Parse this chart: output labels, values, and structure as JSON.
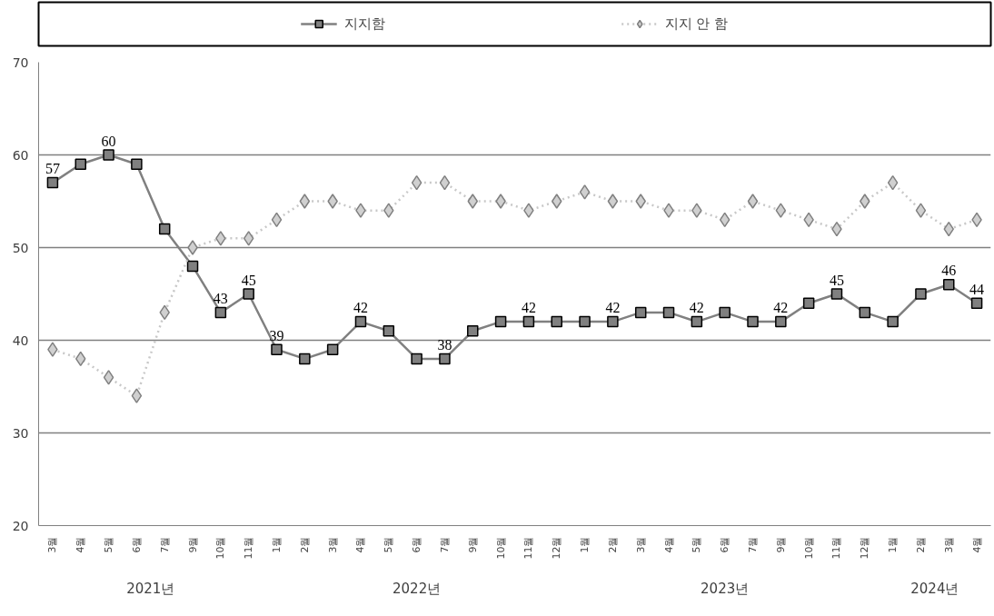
{
  "chart_data": {
    "type": "line",
    "categories": [
      "3월",
      "4월",
      "5월",
      "6월",
      "7월",
      "9월",
      "10월",
      "11월",
      "1월",
      "2월",
      "3월",
      "4월",
      "5월",
      "6월",
      "7월",
      "9월",
      "10월",
      "11월",
      "12월",
      "1월",
      "2월",
      "3월",
      "4월",
      "5월",
      "6월",
      "7월",
      "9월",
      "10월",
      "11월",
      "12월",
      "1월",
      "2월",
      "3월",
      "4월"
    ],
    "series": [
      {
        "name": "지지함",
        "color": "#808080",
        "marker": "square",
        "line_style": "solid",
        "values": [
          57,
          59,
          60,
          59,
          52,
          48,
          43,
          45,
          39,
          38,
          39,
          42,
          41,
          38,
          38,
          41,
          42,
          42,
          42,
          42,
          42,
          43,
          43,
          42,
          43,
          42,
          42,
          44,
          45,
          43,
          42,
          45,
          46,
          44
        ],
        "value_labels": [
          "57",
          null,
          "60",
          null,
          null,
          null,
          "43",
          "45",
          "39",
          null,
          null,
          "42",
          null,
          null,
          "38",
          null,
          null,
          "42",
          null,
          null,
          "42",
          null,
          null,
          "42",
          null,
          null,
          "42",
          null,
          "45",
          null,
          null,
          null,
          "46",
          "44"
        ]
      },
      {
        "name": "지지 안 함",
        "color": "#d0d0d0",
        "marker": "diamond",
        "line_style": "dotted",
        "values": [
          39,
          38,
          36,
          34,
          43,
          50,
          51,
          51,
          53,
          55,
          55,
          54,
          54,
          57,
          57,
          55,
          55,
          54,
          55,
          56,
          55,
          55,
          54,
          54,
          53,
          55,
          54,
          53,
          52,
          55,
          57,
          54,
          52,
          53
        ]
      }
    ],
    "annotations": [
      "2021년",
      "2022년",
      "2023년",
      "2024년"
    ],
    "ylim": [
      20,
      70
    ],
    "yticks": [
      20,
      30,
      40,
      50,
      60,
      70
    ],
    "grid": "y",
    "legend": "top"
  }
}
